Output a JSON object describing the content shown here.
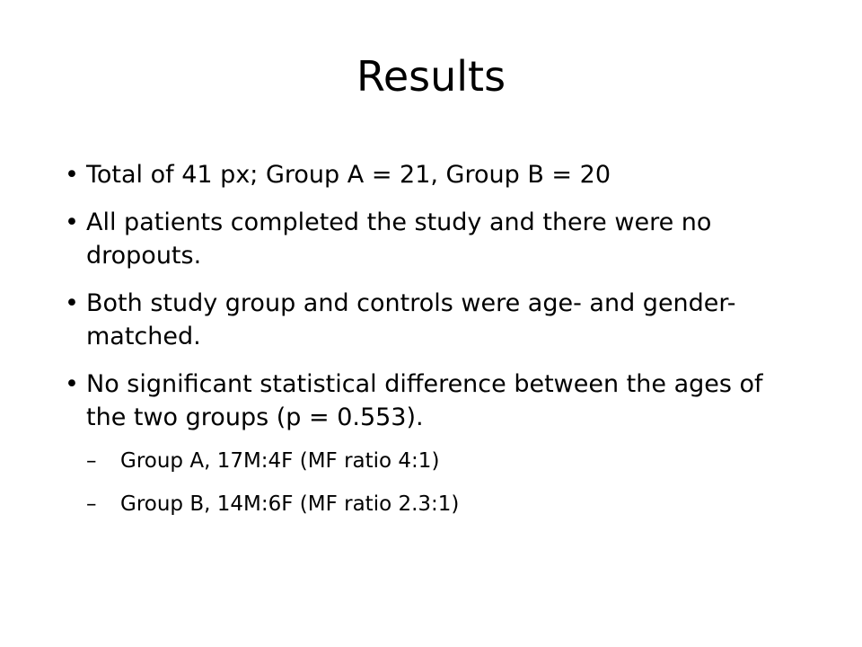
{
  "slide": {
    "title": "Results",
    "bullet_symbol": "•",
    "dash_symbol": "–",
    "bullets": [
      {
        "text": "Total of 41 px; Group A = 21, Group B = 20"
      },
      {
        "text": "All patients completed the study and there were no dropouts."
      },
      {
        "text": "Both study group and controls were age- and gender-matched."
      },
      {
        "text": "No significant statistical difference between the ages of the two groups (p = 0.553).",
        "sub_bullets": [
          {
            "text": "Group A, 17M:4F (MF ratio 4:1)"
          },
          {
            "text": "Group B, 14M:6F (MF ratio 2.3:1)"
          }
        ]
      }
    ]
  }
}
